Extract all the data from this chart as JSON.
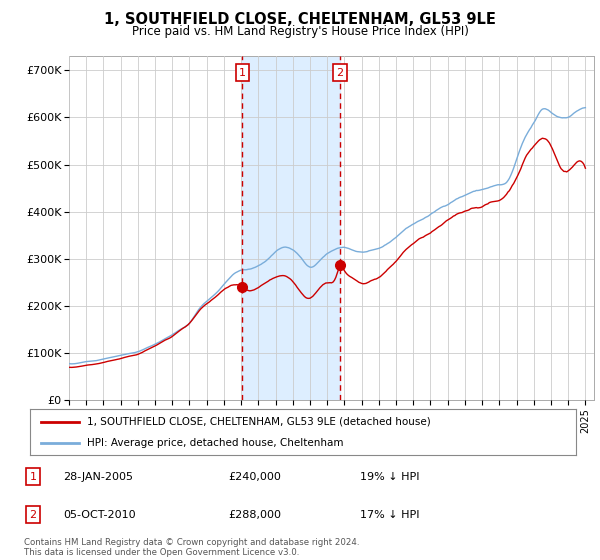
{
  "title": "1, SOUTHFIELD CLOSE, CHELTENHAM, GL53 9LE",
  "subtitle": "Price paid vs. HM Land Registry's House Price Index (HPI)",
  "ylabel_ticks": [
    "£0",
    "£100K",
    "£200K",
    "£300K",
    "£400K",
    "£500K",
    "£600K",
    "£700K"
  ],
  "ytick_vals": [
    0,
    100000,
    200000,
    300000,
    400000,
    500000,
    600000,
    700000
  ],
  "ylim": [
    0,
    730000
  ],
  "xlim_start": 1995.0,
  "xlim_end": 2025.5,
  "hpi_color": "#7aadda",
  "price_color": "#cc0000",
  "transaction_color": "#cc0000",
  "shade_color": "#ddeeff",
  "background_color": "#ffffff",
  "grid_color": "#cccccc",
  "legend_text_1": "1, SOUTHFIELD CLOSE, CHELTENHAM, GL53 9LE (detached house)",
  "legend_text_2": "HPI: Average price, detached house, Cheltenham",
  "transaction_1_date": "28-JAN-2005",
  "transaction_1_price": "£240,000",
  "transaction_1_hpi": "19% ↓ HPI",
  "transaction_1_x": 2005.07,
  "transaction_1_y": 240000,
  "transaction_2_date": "05-OCT-2010",
  "transaction_2_price": "£288,000",
  "transaction_2_hpi": "17% ↓ HPI",
  "transaction_2_x": 2010.75,
  "transaction_2_y": 288000,
  "footnote": "Contains HM Land Registry data © Crown copyright and database right 2024.\nThis data is licensed under the Open Government Licence v3.0."
}
